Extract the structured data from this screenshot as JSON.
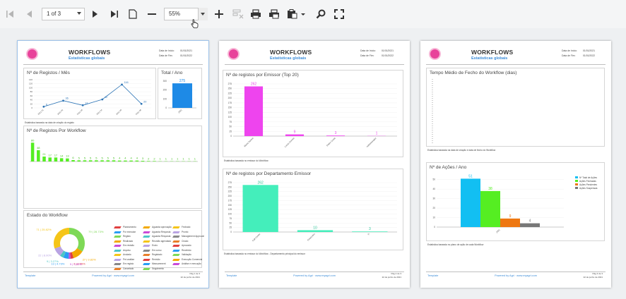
{
  "toolbar": {
    "page_value": "1 of 3",
    "zoom_value": "55%"
  },
  "header": {
    "title": "WORKFLOWS",
    "subtitle": "Estatísticas globais",
    "date_start_label": "Data de Início:",
    "date_start": "01/01/2021",
    "date_end_label": "Data de Fim:",
    "date_end": "01/01/2022"
  },
  "footer": {
    "left": "Template",
    "mid": "Powered by Agri · www.myagri.com",
    "page1": "Pág 1 de 3",
    "page2": "Pág 2 de 3",
    "page3": "Pág 3 de 3",
    "date": "22 de junho de 2021"
  },
  "colors": {
    "accent": "#3c8cd8",
    "logo": "#e8429a",
    "line": "#2e75b6",
    "bar_blue": "#1e8ae6",
    "bar_green": "#55ee22",
    "bar_pink": "#ee44ee",
    "bar_teal": "#44eebb"
  },
  "page1": {
    "registos_mes": {
      "title": "Nº de Registos / Mês",
      "note": "Estatística baseada na data de criação do registo",
      "chart_data": {
        "type": "line",
        "categories": [
          "2021-01",
          "2021-02",
          "2021-03",
          "2021-04",
          "2021-05",
          "2021-06"
        ],
        "values": [
          6,
          36,
          13,
          42,
          116,
          20
        ],
        "ylim": [
          0,
          140
        ],
        "yticks": [
          0,
          20,
          40,
          60,
          80,
          100,
          120,
          140
        ]
      }
    },
    "total_ano": {
      "title": "Total / Ano",
      "chart_data": {
        "type": "bar",
        "categories": [
          "2021"
        ],
        "values": [
          275
        ],
        "ylim": [
          0,
          300
        ],
        "yticks": [
          0,
          100,
          200,
          300
        ]
      }
    },
    "registos_workflow": {
      "title": "Nº de Registos Por Workflow",
      "chart_data": {
        "type": "bar",
        "values": [
          80,
          48,
          21,
          17,
          17,
          14,
          13,
          6,
          5,
          5,
          5,
          5,
          5,
          5,
          5,
          4,
          4,
          4,
          4,
          3,
          2,
          2,
          1,
          1,
          1,
          1,
          1,
          1,
          1
        ],
        "ylim": [
          0,
          90
        ]
      }
    },
    "estado": {
      "title": "Estado do Workflow",
      "chart_data": {
        "type": "pie",
        "labels": [
          "79 | 28.73%",
          "27 | 9.82%",
          "7 | 2.55%",
          "5 | 1.82%",
          "13 | 4.73%",
          "9 | 3.27%",
          "22 | 8.00%",
          "71 | 25.82%"
        ],
        "values": [
          79,
          27,
          7,
          5,
          13,
          9,
          22,
          71
        ]
      },
      "legend_col1": [
        "Planeamento",
        "Por executar",
        "Registo",
        "Realizado",
        "Em revisão",
        "Arquivo",
        "Anulado",
        "Pré-análise",
        "Em registo",
        "Cancelado"
      ],
      "legend_col2": [
        "Aguarda aprovação",
        "Aguarda Resposta",
        "Aguarda Resposta",
        "Reunião agendada",
        "Envio",
        "Em curso",
        "Registado",
        "Revisão",
        "Measurement",
        "Seguimento"
      ],
      "legend_col3": [
        "Fechado",
        "Pronto",
        "Management Approval",
        "Criado",
        "Aprovado",
        "Recebido",
        "Validação",
        "Execução Comercial",
        "Análise e execução"
      ]
    }
  },
  "page2": {
    "emissor": {
      "title": "Nº de registos por Emissor (Top 20)",
      "note": "Estatística baseada no emissor do Workflow",
      "chart_data": {
        "type": "bar",
        "categories": [
          "Maria Santos",
          "Lucas Gomes",
          "Pedro Costa",
          "Administrador"
        ],
        "values": [
          262,
          9,
          3,
          1
        ],
        "ylim": [
          0,
          275
        ],
        "yticks": [
          0,
          25,
          50,
          75,
          100,
          125,
          150,
          175,
          200,
          225,
          250,
          275
        ]
      }
    },
    "departamento": {
      "title": "Nº de registos por Departamento Emissor",
      "note": "Estatística baseada no emissor do Workflow - Departamento principal do emissor",
      "chart_data": {
        "type": "bar",
        "categories": [
          "Call Center",
          "Financeiro",
          "TI"
        ],
        "values": [
          262,
          10,
          3
        ],
        "ylim": [
          0,
          275
        ],
        "yticks": [
          0,
          25,
          50,
          75,
          100,
          125,
          150,
          175,
          200,
          225,
          250,
          275
        ]
      }
    }
  },
  "page3": {
    "tempo": {
      "title": "Tempo Médio de Fecho do Workflow (dias)",
      "note": "Estatística baseada na data de criação e data de fecho do Workflow"
    },
    "acoes": {
      "title": "Nº de Ações / Ano",
      "note": "Estatística baseada no plano de ação de cada Workflow",
      "chart_data": {
        "type": "bar",
        "categories": [
          "2021"
        ],
        "series": [
          {
            "name": "Nº Total de Ações",
            "values": [
              51
            ],
            "color": "#12bff2"
          },
          {
            "name": "Ações Fechadas",
            "values": [
              38
            ],
            "color": "#55ee22"
          },
          {
            "name": "Ações Pendentes",
            "values": [
              9
            ],
            "color": "#ee7711"
          },
          {
            "name": "Ações Suspensas",
            "values": [
              4
            ],
            "color": "#777777"
          }
        ],
        "ylim": [
          0,
          55
        ],
        "yticks": [
          0,
          10,
          20,
          30,
          40,
          50
        ]
      }
    }
  }
}
